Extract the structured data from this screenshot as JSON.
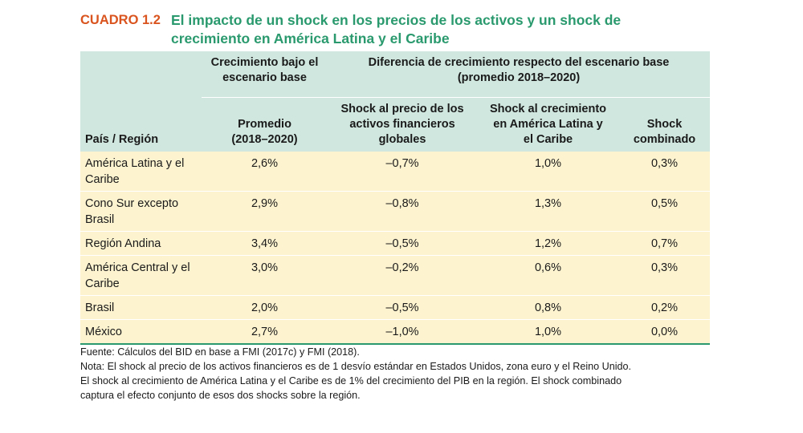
{
  "title": {
    "number": "CUADRO 1.2",
    "text_line1": "El impacto de un shock en los precios de los activos y un shock de",
    "text_line2": "crecimiento en América Latina y el Caribe"
  },
  "table": {
    "group_headers": {
      "baseline_line1": "Crecimiento bajo el",
      "baseline_line2": "escenario base",
      "diff_line1": "Diferencia de crecimiento respecto del escenario base",
      "diff_line2": "(promedio 2018–2020)"
    },
    "columns": {
      "country": "País / Región",
      "avg_line1": "Promedio",
      "avg_line2": "(2018–2020)",
      "asset_line1": "Shock al precio de los",
      "asset_line2": "activos financieros",
      "asset_line3": "globales",
      "growth_line1": "Shock al crecimiento",
      "growth_line2": "en América Latina y",
      "growth_line3": "el Caribe",
      "combined_line1": "Shock",
      "combined_line2": "combinado"
    },
    "rows": [
      {
        "country_line1": "América Latina y el",
        "country_line2": "Caribe",
        "avg": "2,6%",
        "asset": "–0,7%",
        "growth": "1,0%",
        "combined": "0,3%"
      },
      {
        "country_line1": "Cono Sur excepto",
        "country_line2": "Brasil",
        "avg": "2,9%",
        "asset": "–0,8%",
        "growth": "1,3%",
        "combined": "0,5%"
      },
      {
        "country_line1": "Región Andina",
        "country_line2": "",
        "avg": "3,4%",
        "asset": "–0,5%",
        "growth": "1,2%",
        "combined": "0,7%"
      },
      {
        "country_line1": "América Central y el",
        "country_line2": "Caribe",
        "avg": "3,0%",
        "asset": "–0,2%",
        "growth": "0,6%",
        "combined": "0,3%"
      },
      {
        "country_line1": "Brasil",
        "country_line2": "",
        "avg": "2,0%",
        "asset": "–0,5%",
        "growth": "0,8%",
        "combined": "0,2%"
      },
      {
        "country_line1": "México",
        "country_line2": "",
        "avg": "2,7%",
        "asset": "–1,0%",
        "growth": "1,0%",
        "combined": "0,0%"
      }
    ]
  },
  "notes": {
    "line1": "Fuente: Cálculos del BID en base a FMI (2017c) y FMI (2018).",
    "line2": "Nota: El shock al precio de los activos financieros es de 1 desvío estándar en Estados Unidos, zona euro y el Reino Unido.",
    "line3": "El shock al crecimiento de  América Latina y el Caribe es de 1% del crecimiento del PIB en la región. El shock combinado",
    "line4": "captura el efecto conjunto de esos dos shocks sobre la región."
  },
  "colors": {
    "title_number": "#d9541e",
    "title_text": "#2a9a6e",
    "header_bg": "#cfe7df",
    "body_bg": "#fdf3cf",
    "rule": "#2a9a6e"
  }
}
